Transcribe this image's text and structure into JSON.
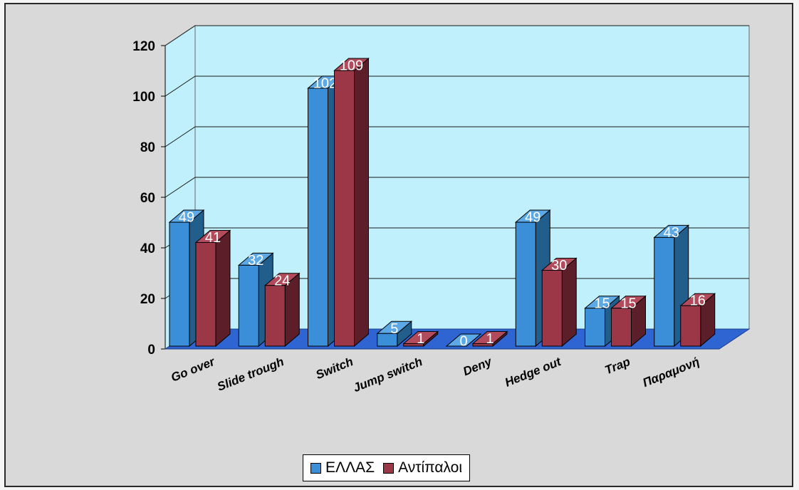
{
  "colors": {
    "series1_front": "#3a8fd8",
    "series1_side": "#215e8c",
    "series1_top": "#5ca9e6",
    "series2_front": "#9b3747",
    "series2_side": "#5c1e29",
    "series2_top": "#b24b5c",
    "wall": "#bff0fb",
    "floor": "#2f65d3"
  },
  "chart_data": {
    "type": "bar",
    "categories": [
      "Go over",
      "Slide trough",
      "Switch",
      "Jump switch",
      "Deny",
      "Hedge out",
      "Trap",
      "Παραμονή"
    ],
    "series": [
      {
        "name": "ΕΛΛΑΣ",
        "values": [
          49,
          32,
          102,
          5,
          0,
          49,
          15,
          43
        ],
        "labels": [
          "49",
          "32",
          "102",
          "5",
          "0",
          "49",
          "15",
          "43"
        ]
      },
      {
        "name": "Αντίπαλοι",
        "values": [
          41,
          24,
          109,
          1,
          1,
          30,
          15,
          16
        ],
        "labels": [
          "41",
          "24",
          "109",
          "1",
          "1",
          "30",
          "15",
          "16"
        ]
      }
    ],
    "ylim": [
      0,
      120
    ],
    "yticks": [
      0,
      20,
      40,
      60,
      80,
      100,
      120
    ],
    "ytick_labels": [
      "0",
      "20",
      "40",
      "60",
      "80",
      "100",
      "120"
    ],
    "grid": true,
    "legend_position": "bottom"
  }
}
